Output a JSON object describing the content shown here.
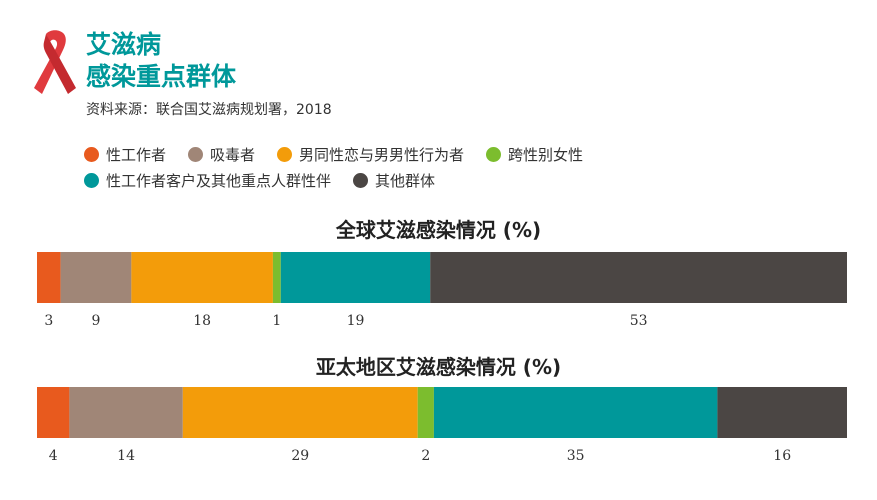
{
  "header": {
    "title_line1": "艾滋病",
    "title_line2": "感染重点群体",
    "source": "资料来源：联合国艾滋病规划署，2018"
  },
  "legend": [
    {
      "label": "性工作者",
      "color": "#e85a1e"
    },
    {
      "label": "吸毒者",
      "color": "#a08677"
    },
    {
      "label": "男同性恋与男男性行为者",
      "color": "#f39c0a"
    },
    {
      "label": "跨性别女性",
      "color": "#7cbd2e"
    },
    {
      "label": "性工作者客户及其他重点人群性伴",
      "color": "#00989a"
    },
    {
      "label": "其他群体",
      "color": "#4b4644"
    }
  ],
  "chart_data": [
    {
      "type": "bar",
      "stacked": true,
      "orientation": "horizontal",
      "title": "全球艾滋感染情况 (%)",
      "categories": [
        "性工作者",
        "吸毒者",
        "男同性恋与男男性行为者",
        "跨性别女性",
        "性工作者客户及其他重点人群性伴",
        "其他群体"
      ],
      "values": [
        3,
        9,
        18,
        1,
        19,
        53
      ],
      "labels": [
        "3",
        "9",
        "18",
        "1",
        "19",
        "53"
      ]
    },
    {
      "type": "bar",
      "stacked": true,
      "orientation": "horizontal",
      "title": "亚太地区艾滋感染情况 (%)",
      "categories": [
        "性工作者",
        "吸毒者",
        "男同性恋与男男性行为者",
        "跨性别女性",
        "性工作者客户及其他重点人群性伴",
        "其他群体"
      ],
      "values": [
        4,
        14,
        29,
        2,
        35,
        16
      ],
      "labels": [
        "4",
        "14",
        "29",
        "2",
        "35",
        "16"
      ]
    }
  ]
}
